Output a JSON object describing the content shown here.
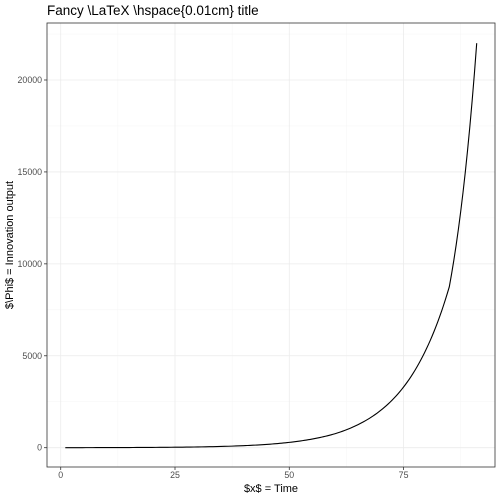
{
  "chart_data": {
    "type": "line",
    "title": "Fancy \\LaTeX  \\hspace{0.01cm} title",
    "xlabel": "$x$ = Time",
    "ylabel": "$\\Phi$ = Innovation output",
    "xlim": [
      -3,
      95
    ],
    "ylim": [
      -1050,
      23100
    ],
    "x_ticks": [
      0,
      25,
      50,
      75
    ],
    "x_tick_labels": [
      "0",
      "25",
      "50",
      "75"
    ],
    "y_ticks": [
      0,
      5000,
      10000,
      15000,
      20000
    ],
    "y_tick_labels": [
      "0",
      "5000",
      "10000",
      "15000",
      "20000"
    ],
    "grid": true,
    "legend": "none",
    "series": [
      {
        "color": "#000000",
        "x": [
          1,
          10,
          20,
          30,
          40,
          45,
          50,
          55,
          60,
          65,
          70,
          75,
          80,
          85,
          91
        ],
        "y": [
          2,
          6,
          16,
          41,
          110,
          178,
          290,
          470,
          760,
          1250,
          2030,
          3300,
          5380,
          8750,
          22000
        ]
      }
    ]
  }
}
